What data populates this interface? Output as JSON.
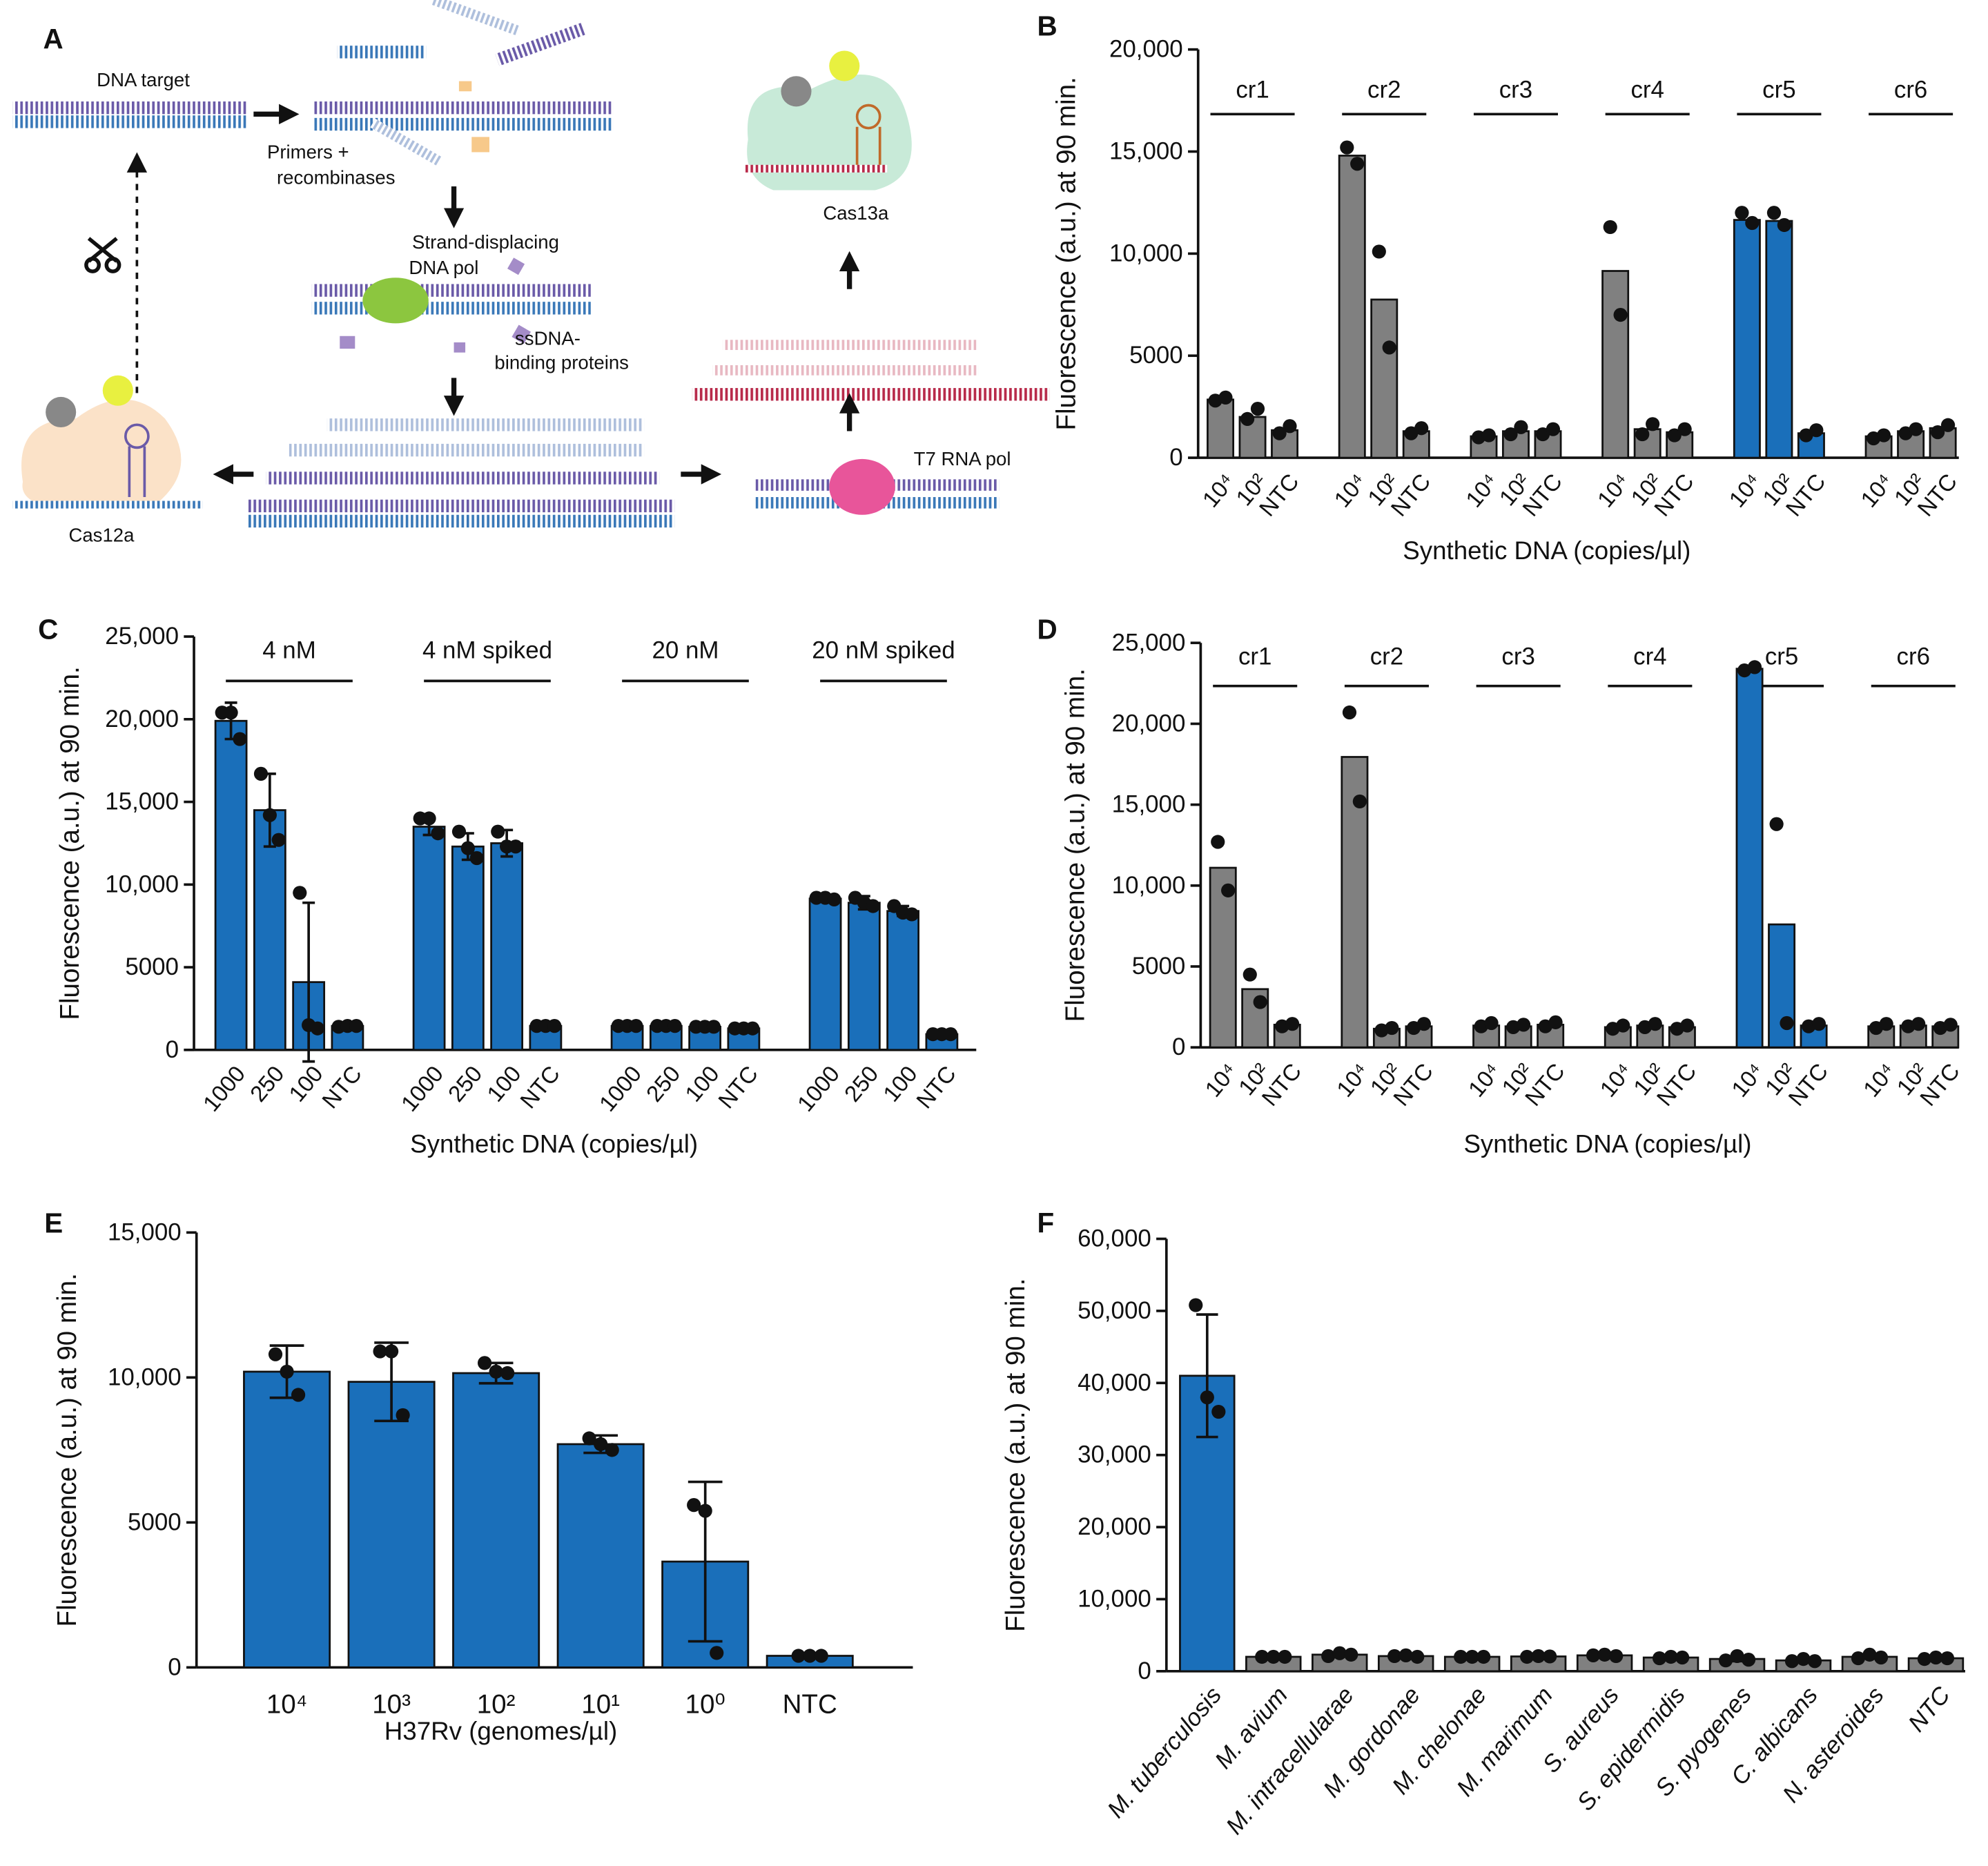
{
  "diagram": {
    "panel_label": "A",
    "labels": [
      "DNA target",
      "Primers +",
      "recombinases",
      "Strand-displacing",
      "DNA pol",
      "ssDNA-",
      "binding proteins",
      "Cas13a",
      "T7 RNA pol",
      "Cas12a"
    ]
  },
  "chart_data": [
    {
      "type": "bar",
      "panel_label": "B",
      "ylabel": "Fluorescence (a.u.) at 90 min.",
      "xlabel": "Synthetic DNA (copies/µl)",
      "ylim": [
        0,
        20000
      ],
      "yticks": [
        0,
        5000,
        {
          "value": 10000,
          "label": "10,000"
        },
        {
          "value": 15000,
          "label": "15,000"
        },
        {
          "value": 20000,
          "label": "20,000"
        }
      ],
      "groups": [
        "cr1",
        "cr2",
        "cr3",
        "cr4",
        "cr5",
        "cr6"
      ],
      "categories": [
        "10⁴",
        "10²",
        "NTC",
        "10⁴",
        "10²",
        "NTC",
        "10⁴",
        "10²",
        "NTC",
        "10⁴",
        "10²",
        "NTC",
        "10⁴",
        "10²",
        "NTC",
        "10⁴",
        "10²",
        "NTC"
      ],
      "values": [
        2850,
        2000,
        1350,
        14800,
        7750,
        1300,
        1050,
        1300,
        1300,
        9150,
        1400,
        1250,
        11650,
        11600,
        1200,
        1050,
        1300,
        1450
      ],
      "points": [
        [
          2800,
          2950
        ],
        [
          1900,
          2400
        ],
        [
          1200,
          1550
        ],
        [
          15200,
          14400
        ],
        [
          10100,
          5400
        ],
        [
          1200,
          1450
        ],
        [
          1000,
          1100
        ],
        [
          1150,
          1500
        ],
        [
          1150,
          1400
        ],
        [
          11300,
          7000
        ],
        [
          1150,
          1650
        ],
        [
          1100,
          1400
        ],
        [
          12000,
          11500
        ],
        [
          12000,
          11400
        ],
        [
          1100,
          1350
        ],
        [
          950,
          1100
        ],
        [
          1200,
          1400
        ],
        [
          1250,
          1600
        ]
      ],
      "colors": [
        "#808080",
        "#808080",
        "#808080",
        "#808080",
        "#808080",
        "#808080",
        "#808080",
        "#808080",
        "#808080",
        "#808080",
        "#808080",
        "#808080",
        "#1a6fba",
        "#1a6fba",
        "#1a6fba",
        "#808080",
        "#808080",
        "#808080"
      ]
    },
    {
      "type": "bar",
      "panel_label": "C",
      "ylabel": "Fluorescence (a.u.) at 90 min.",
      "xlabel": "Synthetic DNA (copies/µl)",
      "ylim": [
        0,
        25000
      ],
      "yticks": [
        0,
        5000,
        {
          "value": 10000,
          "label": "10,000"
        },
        {
          "value": 15000,
          "label": "15,000"
        },
        {
          "value": 20000,
          "label": "20,000"
        },
        {
          "value": 25000,
          "label": "25,000"
        }
      ],
      "groups": [
        "4 nM",
        "4 nM spiked",
        "20 nM",
        "20 nM spiked"
      ],
      "categories": [
        "1000",
        "250",
        "100",
        "NTC",
        "1000",
        "250",
        "100",
        "NTC",
        "1000",
        "250",
        "100",
        "NTC",
        "1000",
        "250",
        "100",
        "NTC"
      ],
      "values": [
        19900,
        14500,
        4100,
        1450,
        13500,
        12300,
        12500,
        1450,
        1450,
        1450,
        1400,
        1300,
        9150,
        8900,
        8400,
        950
      ],
      "errors": [
        1100,
        2200,
        4800,
        50,
        500,
        800,
        800,
        50,
        50,
        50,
        50,
        50,
        150,
        400,
        300,
        50
      ],
      "points": [
        [
          20400,
          20400,
          18800
        ],
        [
          16700,
          14200,
          12700
        ],
        [
          9500,
          1500,
          1300
        ],
        [
          1400,
          1450,
          1450
        ],
        [
          14000,
          14000,
          13100
        ],
        [
          13200,
          12200,
          11600
        ],
        [
          13200,
          12300,
          12300
        ],
        [
          1450,
          1450,
          1450
        ],
        [
          1450,
          1450,
          1450
        ],
        [
          1450,
          1450,
          1450
        ],
        [
          1400,
          1400,
          1400
        ],
        [
          1300,
          1300,
          1300
        ],
        [
          9200,
          9200,
          9100
        ],
        [
          9200,
          8900,
          8700
        ],
        [
          8700,
          8300,
          8200
        ],
        [
          950,
          950,
          950
        ]
      ],
      "color": "#1a6fba"
    },
    {
      "type": "bar",
      "panel_label": "D",
      "ylabel": "Fluorescence (a.u.) at 90 min.",
      "xlabel": "Synthetic DNA (copies/µl)",
      "ylim": [
        0,
        25000
      ],
      "yticks": [
        0,
        5000,
        {
          "value": 10000,
          "label": "10,000"
        },
        {
          "value": 15000,
          "label": "15,000"
        },
        {
          "value": 20000,
          "label": "20,000"
        },
        {
          "value": 25000,
          "label": "25,000"
        }
      ],
      "groups": [
        "cr1",
        "cr2",
        "cr3",
        "cr4",
        "cr5",
        "cr6"
      ],
      "categories": [
        "10⁴",
        "10²",
        "NTC",
        "10⁴",
        "10²",
        "NTC",
        "10⁴",
        "10²",
        "NTC",
        "10⁴",
        "10²",
        "NTC",
        "10⁴",
        "10²",
        "NTC",
        "10⁴",
        "10²",
        "NTC"
      ],
      "values": [
        11100,
        3600,
        1400,
        17950,
        1150,
        1300,
        1350,
        1300,
        1400,
        1250,
        1350,
        1250,
        23400,
        7600,
        1350,
        1300,
        1350,
        1300
      ],
      "points": [
        [
          12700,
          9700
        ],
        [
          4500,
          2800
        ],
        [
          1300,
          1450
        ],
        [
          20700,
          15200
        ],
        [
          1050,
          1200
        ],
        [
          1200,
          1450
        ],
        [
          1300,
          1500
        ],
        [
          1250,
          1400
        ],
        [
          1300,
          1550
        ],
        [
          1150,
          1350
        ],
        [
          1250,
          1450
        ],
        [
          1150,
          1350
        ],
        [
          23300,
          23500
        ],
        [
          13800,
          1500
        ],
        [
          1300,
          1450
        ],
        [
          1200,
          1450
        ],
        [
          1300,
          1450
        ],
        [
          1200,
          1400
        ]
      ],
      "colors": [
        "#808080",
        "#808080",
        "#808080",
        "#808080",
        "#808080",
        "#808080",
        "#808080",
        "#808080",
        "#808080",
        "#808080",
        "#808080",
        "#808080",
        "#1a6fba",
        "#1a6fba",
        "#1a6fba",
        "#808080",
        "#808080",
        "#808080"
      ]
    },
    {
      "type": "bar",
      "panel_label": "E",
      "ylabel": "Fluorescence (a.u.) at 90 min.",
      "xlabel": "H37Rv (genomes/µl)",
      "ylim": [
        0,
        15000
      ],
      "yticks": [
        0,
        5000,
        {
          "value": 10000,
          "label": "10,000"
        },
        {
          "value": 15000,
          "label": "15,000"
        }
      ],
      "categories": [
        "10⁴",
        "10³",
        "10²",
        "10¹",
        "10⁰",
        "NTC"
      ],
      "values": [
        10200,
        9850,
        10150,
        7700,
        3650,
        400
      ],
      "errors": [
        900,
        1350,
        350,
        300,
        2750,
        20
      ],
      "points": [
        [
          10800,
          10200,
          9400
        ],
        [
          10900,
          10900,
          8700
        ],
        [
          10500,
          10200,
          10150
        ],
        [
          7900,
          7700,
          7500
        ],
        [
          5600,
          5400,
          500
        ],
        [
          400,
          400,
          400
        ]
      ],
      "color": "#1a6fba"
    },
    {
      "type": "bar",
      "panel_label": "F",
      "ylabel": "Fluorescence (a.u.) at 90 min.",
      "ylim": [
        0,
        60000
      ],
      "yticks": [
        0,
        {
          "value": 10000,
          "label": "10,000"
        },
        {
          "value": 20000,
          "label": "20,000"
        },
        {
          "value": 30000,
          "label": "30,000"
        },
        {
          "value": 40000,
          "label": "40,000"
        },
        {
          "value": 50000,
          "label": "50,000"
        },
        {
          "value": 60000,
          "label": "60,000"
        }
      ],
      "categories": [
        "M. tuberculosis",
        "M. avium",
        "M. intracellularae",
        "M. gordonae",
        "M. chelonae",
        "M. marimum",
        "S. aureus",
        "S. epidermidis",
        "S. pyogenes",
        "C. albicans",
        "N. asteroides",
        "NTC"
      ],
      "values": [
        41000,
        2000,
        2300,
        2100,
        2000,
        2050,
        2200,
        1900,
        1700,
        1500,
        2000,
        1800
      ],
      "errors": [
        8500,
        100,
        250,
        150,
        100,
        150,
        150,
        200,
        300,
        200,
        250,
        150
      ],
      "points": [
        [
          50800,
          38000,
          36000
        ],
        [
          2000,
          2000,
          2000
        ],
        [
          2100,
          2500,
          2300
        ],
        [
          2100,
          2200,
          2000
        ],
        [
          2000,
          2000,
          2000
        ],
        [
          2000,
          2100,
          2050
        ],
        [
          2200,
          2300,
          2100
        ],
        [
          1800,
          2000,
          1900
        ],
        [
          1500,
          2100,
          1600
        ],
        [
          1400,
          1700,
          1400
        ],
        [
          1800,
          2300,
          1900
        ],
        [
          1700,
          1900,
          1800
        ]
      ],
      "colors": [
        "#1a6fba",
        "#808080",
        "#808080",
        "#808080",
        "#808080",
        "#808080",
        "#808080",
        "#808080",
        "#808080",
        "#808080",
        "#808080",
        "#808080"
      ]
    }
  ]
}
